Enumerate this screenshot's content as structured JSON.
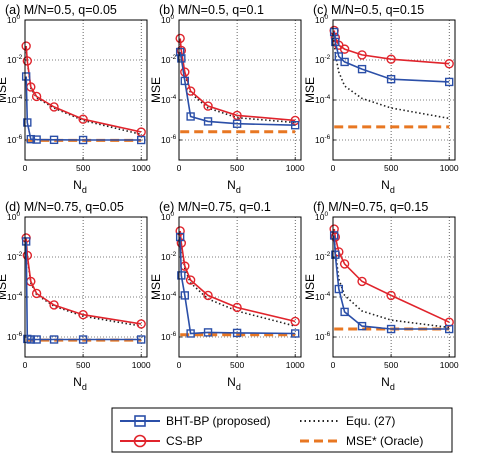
{
  "colors": {
    "bht": "#2b4fa8",
    "cs": "#e0242c",
    "equ": "#222222",
    "oracle": "#e87722"
  },
  "legend": {
    "items": [
      {
        "label": "BHT-BP (proposed)",
        "key": "bht"
      },
      {
        "label": "Equ. (27)",
        "key": "equ"
      },
      {
        "label": "CS-BP",
        "key": "cs"
      },
      {
        "label": "MSE* (Oracle)",
        "key": "oracle"
      }
    ]
  },
  "chart_data": [
    {
      "type": "line",
      "title": "(a) M/N=0.5, q=0.05",
      "xlabel": "N",
      "xlabel_sub": "d",
      "ylabel": "MSE",
      "xlim": [
        0,
        1050
      ],
      "ylim_log10": [
        -7,
        0
      ],
      "yscale": "log",
      "grid": true,
      "xticks": [
        0,
        500,
        1000
      ],
      "series": [
        {
          "key": "bht",
          "x": [
            10,
            20,
            50,
            100,
            250,
            500,
            1000
          ],
          "y": [
            0.0015,
            7.5e-06,
            1.1e-06,
            1.05e-06,
            1.02e-06,
            1e-06,
            1e-06
          ]
        },
        {
          "key": "cs",
          "x": [
            10,
            20,
            50,
            100,
            250,
            500,
            1000
          ],
          "y": [
            0.05,
            0.009,
            0.00045,
            0.00015,
            4.5e-05,
            1.1e-05,
            2.5e-06
          ]
        },
        {
          "key": "equ",
          "x": [
            10,
            20,
            50,
            100,
            250,
            500,
            1000
          ],
          "y": [
            0.04,
            0.008,
            0.0004,
            0.00013,
            4e-05,
            9.5e-06,
            1.9e-06
          ]
        },
        {
          "key": "oracle",
          "x": [
            10,
            1000
          ],
          "y": [
            9.5e-07,
            9.5e-07
          ]
        }
      ]
    },
    {
      "type": "line",
      "title": "(b) M/N=0.5, q=0.1",
      "xlabel": "N",
      "xlabel_sub": "d",
      "ylabel": "MSE",
      "xlim": [
        0,
        1050
      ],
      "ylim_log10": [
        -7,
        0
      ],
      "yscale": "log",
      "grid": true,
      "xticks": [
        0,
        500,
        1000
      ],
      "series": [
        {
          "key": "bht",
          "x": [
            10,
            20,
            50,
            100,
            250,
            500,
            1000
          ],
          "y": [
            0.025,
            0.012,
            0.0009,
            1.5e-05,
            8.5e-06,
            6.5e-06,
            5.5e-06
          ]
        },
        {
          "key": "cs",
          "x": [
            10,
            20,
            50,
            100,
            250,
            500,
            1000
          ],
          "y": [
            0.12,
            0.03,
            0.0025,
            0.00028,
            5e-05,
            1.7e-05,
            9.5e-06
          ]
        },
        {
          "key": "equ",
          "x": [
            10,
            20,
            50,
            100,
            250,
            500,
            1000
          ],
          "y": [
            0.1,
            0.025,
            0.002,
            0.00022,
            4e-05,
            1.3e-05,
            7.5e-06
          ]
        },
        {
          "key": "oracle",
          "x": [
            10,
            1000
          ],
          "y": [
            2.6e-06,
            2.6e-06
          ]
        }
      ]
    },
    {
      "type": "line",
      "title": "(c) M/N=0.5, q=0.15",
      "xlabel": "N",
      "xlabel_sub": "d",
      "ylabel": "MSE",
      "xlim": [
        0,
        1050
      ],
      "ylim_log10": [
        -7,
        0
      ],
      "yscale": "log",
      "grid": true,
      "xticks": [
        0,
        500,
        1000
      ],
      "series": [
        {
          "key": "bht",
          "x": [
            10,
            20,
            50,
            100,
            250,
            500,
            1000
          ],
          "y": [
            0.25,
            0.08,
            0.015,
            0.008,
            0.0035,
            0.0011,
            0.0008
          ]
        },
        {
          "key": "cs",
          "x": [
            10,
            20,
            50,
            100,
            250,
            500,
            1000
          ],
          "y": [
            0.3,
            0.13,
            0.055,
            0.035,
            0.018,
            0.011,
            0.0065
          ]
        },
        {
          "key": "equ",
          "x": [
            10,
            20,
            50,
            100,
            250,
            500,
            1000
          ],
          "y": [
            0.1,
            0.02,
            0.0025,
            0.0005,
            0.00012,
            4e-05,
            1.2e-05
          ]
        },
        {
          "key": "oracle",
          "x": [
            10,
            1000
          ],
          "y": [
            4.5e-06,
            4.5e-06
          ]
        }
      ]
    },
    {
      "type": "line",
      "title": "(d) M/N=0.75, q=0.05",
      "xlabel": "N",
      "xlabel_sub": "d",
      "ylabel": "MSE",
      "xlim": [
        0,
        1050
      ],
      "ylim_log10": [
        -7,
        0
      ],
      "yscale": "log",
      "grid": true,
      "xticks": [
        0,
        500,
        1000
      ],
      "series": [
        {
          "key": "bht",
          "x": [
            10,
            20,
            50,
            100,
            250,
            500,
            1000
          ],
          "y": [
            0.06,
            8e-07,
            7.5e-07,
            7.5e-07,
            7.5e-07,
            7.5e-07,
            7.5e-07
          ]
        },
        {
          "key": "cs",
          "x": [
            10,
            20,
            50,
            100,
            250,
            500,
            1000
          ],
          "y": [
            0.09,
            0.012,
            0.0006,
            0.00015,
            4e-05,
            1.3e-05,
            4.5e-06
          ]
        },
        {
          "key": "equ",
          "x": [
            10,
            20,
            50,
            100,
            250,
            500,
            1000
          ],
          "y": [
            0.08,
            0.01,
            0.0005,
            0.00013,
            3.5e-05,
            1.1e-05,
            3.5e-06
          ]
        },
        {
          "key": "oracle",
          "x": [
            10,
            1000
          ],
          "y": [
            7e-07,
            7e-07
          ]
        }
      ]
    },
    {
      "type": "line",
      "title": "(e) M/N=0.75, q=0.1",
      "xlabel": "N",
      "xlabel_sub": "d",
      "ylabel": "MSE",
      "xlim": [
        0,
        1050
      ],
      "ylim_log10": [
        -7,
        0
      ],
      "yscale": "log",
      "grid": true,
      "xticks": [
        0,
        500,
        1000
      ],
      "series": [
        {
          "key": "bht",
          "x": [
            10,
            20,
            50,
            100,
            250,
            500,
            1000
          ],
          "y": [
            0.1,
            0.0012,
            0.00012,
            1.5e-06,
            1.7e-06,
            1.6e-06,
            1.5e-06
          ]
        },
        {
          "key": "cs",
          "x": [
            10,
            20,
            50,
            100,
            250,
            500,
            1000
          ],
          "y": [
            0.2,
            0.05,
            0.0035,
            0.0007,
            0.00012,
            3e-05,
            6e-06
          ]
        },
        {
          "key": "equ",
          "x": [
            10,
            20,
            50,
            100,
            250,
            500,
            1000
          ],
          "y": [
            0.18,
            0.04,
            0.0025,
            0.0005,
            8e-05,
            2e-05,
            3.5e-06
          ]
        },
        {
          "key": "oracle",
          "x": [
            10,
            1000
          ],
          "y": [
            1.3e-06,
            1.3e-06
          ]
        }
      ]
    },
    {
      "type": "line",
      "title": "(f) M/N=0.75, q=0.15",
      "xlabel": "N",
      "xlabel_sub": "d",
      "ylabel": "MSE",
      "xlim": [
        0,
        1050
      ],
      "ylim_log10": [
        -7,
        0
      ],
      "yscale": "log",
      "grid": true,
      "xticks": [
        0,
        500,
        1000
      ],
      "series": [
        {
          "key": "bht",
          "x": [
            10,
            20,
            50,
            100,
            250,
            500,
            1000
          ],
          "y": [
            0.12,
            0.013,
            0.00025,
            1.8e-05,
            3.5e-06,
            2.5e-06,
            2.5e-06
          ]
        },
        {
          "key": "cs",
          "x": [
            10,
            20,
            50,
            100,
            250,
            500,
            1000
          ],
          "y": [
            0.25,
            0.1,
            0.018,
            0.0045,
            0.0006,
            0.00012,
            5.5e-06
          ]
        },
        {
          "key": "equ",
          "x": [
            10,
            20,
            50,
            100,
            250,
            500,
            1000
          ],
          "y": [
            0.12,
            0.02,
            0.0008,
            0.00012,
            2e-05,
            7e-06,
            3e-06
          ]
        },
        {
          "key": "oracle",
          "x": [
            10,
            1000
          ],
          "y": [
            2.5e-06,
            2.5e-06
          ]
        }
      ]
    }
  ]
}
